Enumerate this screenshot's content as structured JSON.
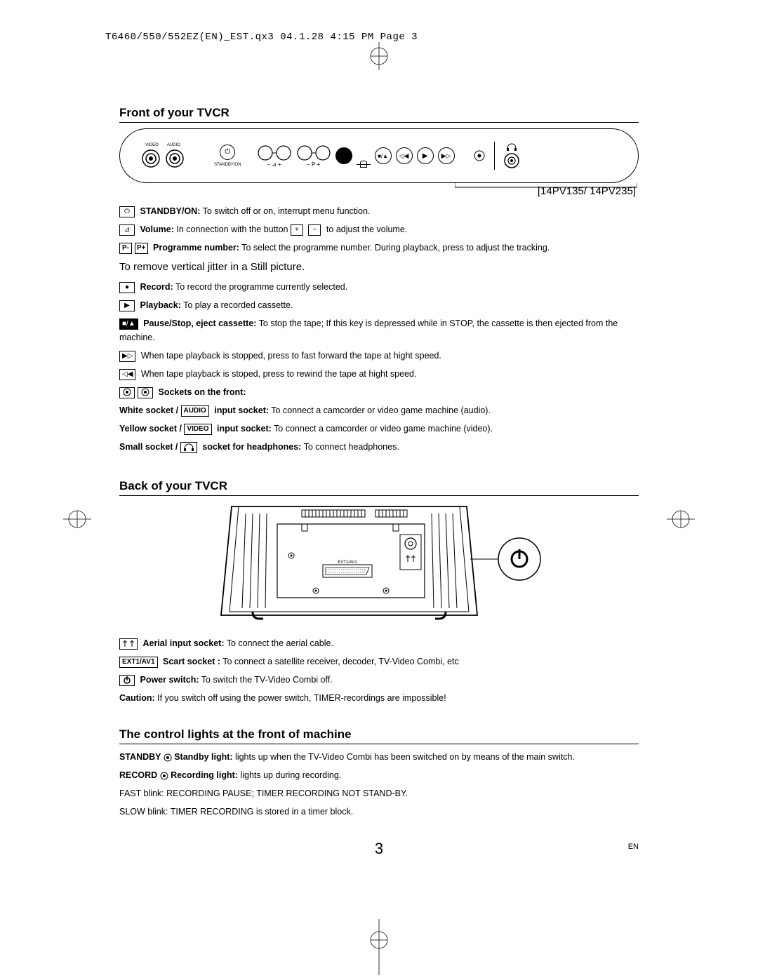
{
  "header": "T6460/550/552EZ(EN)_EST.qx3  04.1.28  4:15 PM  Page 3",
  "section1_title": "Front of your TVCR",
  "model": "[14PV135/ 14PV235]",
  "front_panel": {
    "label_video": "VIDEO",
    "label_audio": "AUDIO",
    "label_standby": "STANDBY/ON",
    "label_vol_minus": "−",
    "label_vol_plus": "+",
    "label_p_minus": "−",
    "label_p_plus": "P +"
  },
  "front_items": [
    {
      "icon": "⏻",
      "bold": "STANDBY/ON:",
      "text": " To switch off or on, interrupt menu function."
    },
    {
      "icon": "⊿",
      "bold": "Volume:",
      "text": " In connection with the button ",
      "icon2a": "+",
      "icon2b": "−",
      "text2": " to adjust the volume."
    },
    {
      "icon_a": "P-",
      "icon_b": "P+",
      "bold": "Programme number:",
      "text": " To select the programme number. During playback, press to adjust the tracking."
    },
    {
      "plain_line": "To remove vertical jitter in a Still picture."
    },
    {
      "icon": "●",
      "bold": "Record:",
      "text": " To record the programme currently selected."
    },
    {
      "icon": "▶",
      "bold": "Playback:",
      "text": " To play a recorded cassette."
    },
    {
      "icon": "■/▲",
      "bold": "Pause/Stop, eject cassette:",
      "text": " To stop the tape; If this key is depressed while in STOP, the cassette is then ejected from the machine.",
      "dark": true
    },
    {
      "icon": "▶▷",
      "text": " When tape playback is stopped, press to fast forward the tape at hight speed."
    },
    {
      "icon": "◁◀",
      "text": " When tape playback is stoped, press to rewind the tape at hight speed."
    },
    {
      "icon_sockets": true,
      "bold": "Sockets on the front:"
    }
  ],
  "socket_lines": [
    {
      "pre_bold": "White socket / ",
      "box": "AUDIO",
      "post_bold": " input socket:",
      "text": " To connect a camcorder or video game machine (audio)."
    },
    {
      "pre_bold": "Yellow socket / ",
      "box": "VIDEO",
      "post_bold": " input socket:",
      "text": " To connect a camcorder or video game machine (video)."
    },
    {
      "pre_bold": "Small socket / ",
      "box_icon": "headphones",
      "post_bold": " socket for headphones:",
      "text": " To connect headphones."
    }
  ],
  "section2_title": "Back of your TVCR",
  "back_label_ext": "EXT1/AV1",
  "back_items": [
    {
      "icon": "⊓⊤⊓",
      "bold": "Aerial input socket:",
      "text": " To connect the aerial cable."
    },
    {
      "box": "EXT1/AV1",
      "bold": "Scart socket :",
      "text": " To connect a satellite receiver, decoder, TV-Video Combi, etc"
    },
    {
      "icon": "⏻",
      "bold": "Power switch:",
      "text": " To switch the TV-Video Combi off."
    },
    {
      "bold": "Caution:",
      "text": " If you switch off using the power switch, TIMER-recordings are impossible!"
    }
  ],
  "section3_title": "The control lights at the front of machine",
  "lights": [
    {
      "bold1": "STANDBY ",
      "icon": "◉",
      "bold2": " Standby light:",
      "text": " lights up when the TV-Video Combi has been switched on by means of the main switch."
    },
    {
      "bold1": "RECORD ",
      "icon": "◉",
      "bold2": " Recording light:",
      "text": " lights up during recording."
    },
    {
      "plain": "FAST blink: RECORDING PAUSE; TIMER RECORDING NOT STAND-BY."
    },
    {
      "plain": "SLOW blink: TIMER RECORDING is stored in a timer block."
    }
  ],
  "page_number": "3",
  "lang": "EN",
  "colors": {
    "text": "#000000",
    "bg": "#ffffff"
  }
}
